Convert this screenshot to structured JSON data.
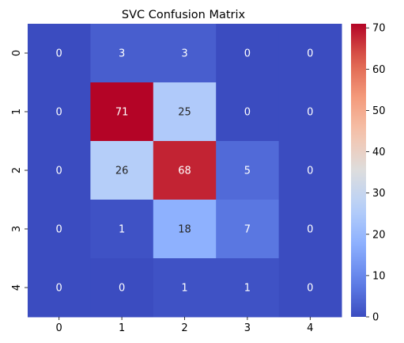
{
  "chart_data": {
    "type": "heatmap",
    "title": "SVC Confusion Matrix",
    "xlabel": "",
    "ylabel": "",
    "x_categories": [
      "0",
      "1",
      "2",
      "3",
      "4"
    ],
    "y_categories": [
      "0",
      "1",
      "2",
      "3",
      "4"
    ],
    "values": [
      [
        0,
        3,
        3,
        0,
        0
      ],
      [
        0,
        71,
        25,
        0,
        0
      ],
      [
        0,
        26,
        68,
        5,
        0
      ],
      [
        0,
        1,
        18,
        7,
        0
      ],
      [
        0,
        0,
        1,
        1,
        0
      ]
    ],
    "colormap": "coolwarm",
    "colorbar": {
      "min": 0,
      "max": 71,
      "ticks": [
        0,
        10,
        20,
        30,
        40,
        50,
        60,
        70
      ]
    },
    "annotations": true,
    "grid": false
  }
}
